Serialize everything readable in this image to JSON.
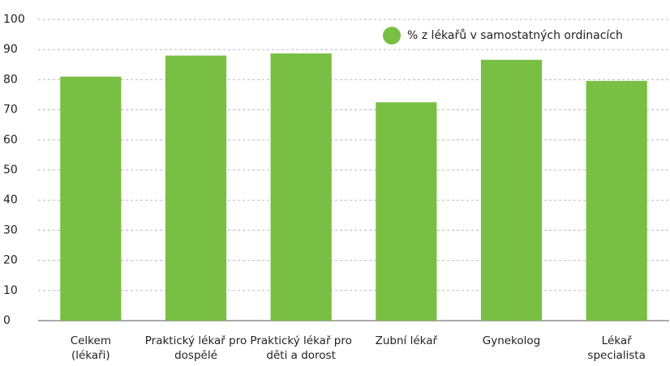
{
  "chart_data": {
    "type": "bar",
    "categories": [
      "Celkem (lékaři)",
      "Praktický lékař pro dospělé",
      "Praktický lékař pro děti a dorost",
      "Zubní lékař",
      "Gynekolog",
      "Lékař specialista"
    ],
    "series": [
      {
        "name": "% z lékařů v samostatných ordinacích",
        "color": "#78bf44",
        "values": [
          81,
          88,
          88.7,
          72.5,
          86.6,
          79.6
        ]
      }
    ],
    "ylim": [
      0,
      100
    ],
    "yticks": [
      0,
      10,
      20,
      30,
      40,
      50,
      60,
      70,
      80,
      90,
      100
    ],
    "grid": true,
    "legend": "top-right"
  }
}
